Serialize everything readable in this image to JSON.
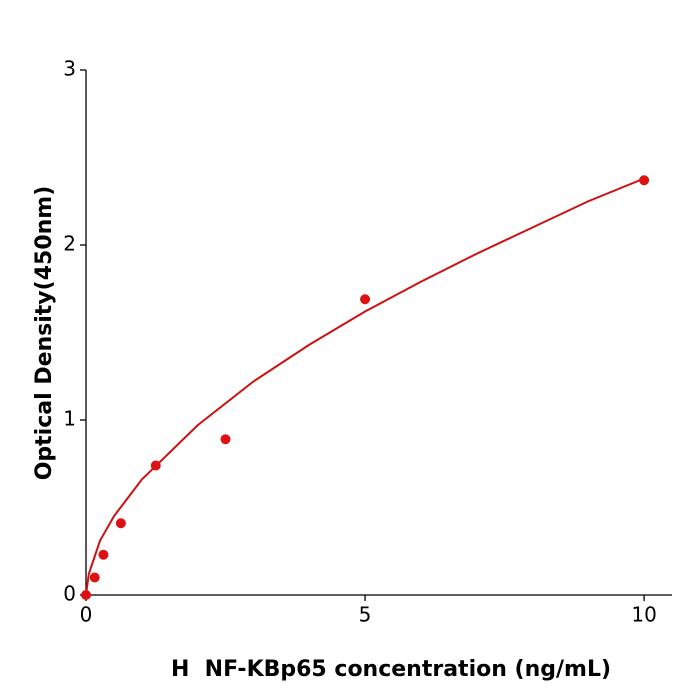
{
  "chart_data": {
    "type": "scatter",
    "x_label": "H  NF-KBp65 concentration (ng/mL)",
    "y_label": "Optical Density(450nm)",
    "xlim": [
      0,
      10.5
    ],
    "xticks": [
      0,
      5,
      10
    ],
    "ylim": [
      0,
      3
    ],
    "yticks": [
      0,
      1,
      2,
      3
    ],
    "grid": false,
    "series": [
      {
        "type": "scatter",
        "color": "#dd1111",
        "x": [
          0,
          0.156,
          0.3125,
          0.625,
          1.25,
          2.5,
          5,
          10
        ],
        "values": [
          0,
          0.1,
          0.23,
          0.41,
          0.74,
          0.89,
          1.69,
          2.37
        ]
      },
      {
        "type": "line",
        "color": "#cc1111",
        "x": [
          0,
          0.05,
          0.25,
          0.5,
          1,
          2,
          3,
          4,
          5,
          6,
          7,
          8,
          9,
          10
        ],
        "values": [
          0,
          0.12,
          0.31,
          0.45,
          0.66,
          0.97,
          1.22,
          1.43,
          1.62,
          1.79,
          1.95,
          2.1,
          2.25,
          2.38
        ]
      }
    ]
  }
}
